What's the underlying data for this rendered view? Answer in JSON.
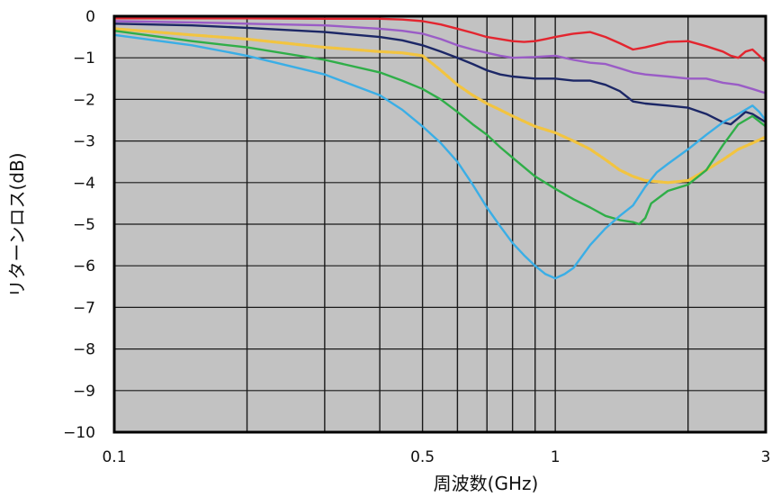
{
  "chart_data": {
    "type": "line",
    "title": "",
    "xlabel": "周波数(GHz)",
    "ylabel": "リターンロス(dB)",
    "x_scale": "log",
    "xlim": [
      0.1,
      3
    ],
    "ylim": [
      -10,
      0
    ],
    "grid": true,
    "background_color": "#c2c2c2",
    "grid_color": "#1a1a1a",
    "x_ticks": {
      "values": [
        0.1,
        0.5,
        1,
        3
      ],
      "labels": [
        "0.1",
        "0.5",
        "1",
        "3"
      ]
    },
    "x_gridlines": [
      0.2,
      0.3,
      0.4,
      0.5,
      0.6,
      0.7,
      0.8,
      0.9,
      1,
      2
    ],
    "y_ticks": {
      "values": [
        0,
        -1,
        -2,
        -3,
        -4,
        -5,
        -6,
        -7,
        -8,
        -9,
        -10
      ],
      "labels": [
        "0",
        "−1",
        "−2",
        "−3",
        "−4",
        "−5",
        "−6",
        "−7",
        "−8",
        "−9",
        "−10"
      ]
    },
    "series": [
      {
        "color": "#e3252f",
        "line_style": "solid",
        "points": [
          [
            0.1,
            -0.05
          ],
          [
            0.15,
            -0.05
          ],
          [
            0.2,
            -0.05
          ],
          [
            0.3,
            -0.06
          ],
          [
            0.4,
            -0.06
          ],
          [
            0.45,
            -0.08
          ],
          [
            0.5,
            -0.12
          ],
          [
            0.55,
            -0.2
          ],
          [
            0.6,
            -0.3
          ],
          [
            0.65,
            -0.4
          ],
          [
            0.7,
            -0.5
          ],
          [
            0.75,
            -0.55
          ],
          [
            0.8,
            -0.6
          ],
          [
            0.85,
            -0.62
          ],
          [
            0.9,
            -0.6
          ],
          [
            0.95,
            -0.55
          ],
          [
            1.0,
            -0.5
          ],
          [
            1.1,
            -0.42
          ],
          [
            1.2,
            -0.38
          ],
          [
            1.3,
            -0.5
          ],
          [
            1.4,
            -0.65
          ],
          [
            1.5,
            -0.8
          ],
          [
            1.6,
            -0.75
          ],
          [
            1.7,
            -0.68
          ],
          [
            1.8,
            -0.62
          ],
          [
            2.0,
            -0.6
          ],
          [
            2.2,
            -0.72
          ],
          [
            2.4,
            -0.85
          ],
          [
            2.5,
            -0.95
          ],
          [
            2.6,
            -1.0
          ],
          [
            2.7,
            -0.85
          ],
          [
            2.8,
            -0.8
          ],
          [
            2.9,
            -0.95
          ],
          [
            3.0,
            -1.1
          ]
        ]
      },
      {
        "color": "#9a5cc6",
        "line_style": "solid",
        "points": [
          [
            0.1,
            -0.12
          ],
          [
            0.15,
            -0.15
          ],
          [
            0.2,
            -0.18
          ],
          [
            0.3,
            -0.22
          ],
          [
            0.4,
            -0.3
          ],
          [
            0.45,
            -0.35
          ],
          [
            0.5,
            -0.42
          ],
          [
            0.55,
            -0.55
          ],
          [
            0.6,
            -0.7
          ],
          [
            0.65,
            -0.8
          ],
          [
            0.7,
            -0.88
          ],
          [
            0.75,
            -0.95
          ],
          [
            0.8,
            -1.0
          ],
          [
            0.9,
            -0.98
          ],
          [
            1.0,
            -0.95
          ],
          [
            1.1,
            -1.05
          ],
          [
            1.2,
            -1.12
          ],
          [
            1.3,
            -1.15
          ],
          [
            1.4,
            -1.25
          ],
          [
            1.5,
            -1.35
          ],
          [
            1.6,
            -1.4
          ],
          [
            1.8,
            -1.45
          ],
          [
            2.0,
            -1.5
          ],
          [
            2.2,
            -1.5
          ],
          [
            2.4,
            -1.6
          ],
          [
            2.6,
            -1.65
          ],
          [
            2.8,
            -1.75
          ],
          [
            3.0,
            -1.85
          ]
        ]
      },
      {
        "color": "#1c2766",
        "line_style": "solid",
        "points": [
          [
            0.1,
            -0.18
          ],
          [
            0.15,
            -0.22
          ],
          [
            0.2,
            -0.28
          ],
          [
            0.3,
            -0.38
          ],
          [
            0.4,
            -0.5
          ],
          [
            0.45,
            -0.58
          ],
          [
            0.5,
            -0.7
          ],
          [
            0.55,
            -0.85
          ],
          [
            0.6,
            -1.0
          ],
          [
            0.65,
            -1.15
          ],
          [
            0.7,
            -1.3
          ],
          [
            0.75,
            -1.4
          ],
          [
            0.8,
            -1.45
          ],
          [
            0.9,
            -1.5
          ],
          [
            1.0,
            -1.5
          ],
          [
            1.1,
            -1.55
          ],
          [
            1.2,
            -1.55
          ],
          [
            1.3,
            -1.65
          ],
          [
            1.4,
            -1.8
          ],
          [
            1.5,
            -2.05
          ],
          [
            1.6,
            -2.1
          ],
          [
            1.8,
            -2.15
          ],
          [
            2.0,
            -2.2
          ],
          [
            2.2,
            -2.35
          ],
          [
            2.4,
            -2.55
          ],
          [
            2.5,
            -2.6
          ],
          [
            2.6,
            -2.45
          ],
          [
            2.7,
            -2.3
          ],
          [
            2.8,
            -2.35
          ],
          [
            3.0,
            -2.55
          ]
        ]
      },
      {
        "color": "#f2c440",
        "line_style": "dotted",
        "points": [
          [
            0.1,
            -0.3
          ],
          [
            0.15,
            -0.45
          ],
          [
            0.2,
            -0.55
          ],
          [
            0.3,
            -0.75
          ],
          [
            0.4,
            -0.85
          ],
          [
            0.45,
            -0.88
          ],
          [
            0.5,
            -0.95
          ],
          [
            0.55,
            -1.3
          ],
          [
            0.6,
            -1.65
          ],
          [
            0.65,
            -1.9
          ],
          [
            0.7,
            -2.1
          ],
          [
            0.75,
            -2.25
          ],
          [
            0.8,
            -2.4
          ],
          [
            0.9,
            -2.65
          ],
          [
            1.0,
            -2.8
          ],
          [
            1.1,
            -3.0
          ],
          [
            1.2,
            -3.2
          ],
          [
            1.3,
            -3.45
          ],
          [
            1.4,
            -3.7
          ],
          [
            1.5,
            -3.85
          ],
          [
            1.6,
            -3.95
          ],
          [
            1.8,
            -4.0
          ],
          [
            2.0,
            -3.95
          ],
          [
            2.2,
            -3.7
          ],
          [
            2.4,
            -3.45
          ],
          [
            2.6,
            -3.2
          ],
          [
            2.8,
            -3.05
          ],
          [
            3.0,
            -2.9
          ]
        ]
      },
      {
        "color": "#2fae48",
        "line_style": "solid",
        "points": [
          [
            0.1,
            -0.35
          ],
          [
            0.15,
            -0.6
          ],
          [
            0.2,
            -0.75
          ],
          [
            0.3,
            -1.05
          ],
          [
            0.4,
            -1.35
          ],
          [
            0.45,
            -1.55
          ],
          [
            0.5,
            -1.75
          ],
          [
            0.55,
            -2.0
          ],
          [
            0.6,
            -2.3
          ],
          [
            0.65,
            -2.6
          ],
          [
            0.7,
            -2.85
          ],
          [
            0.75,
            -3.15
          ],
          [
            0.8,
            -3.4
          ],
          [
            0.9,
            -3.85
          ],
          [
            1.0,
            -4.15
          ],
          [
            1.1,
            -4.4
          ],
          [
            1.2,
            -4.6
          ],
          [
            1.3,
            -4.8
          ],
          [
            1.4,
            -4.9
          ],
          [
            1.5,
            -4.95
          ],
          [
            1.55,
            -5.0
          ],
          [
            1.6,
            -4.85
          ],
          [
            1.65,
            -4.5
          ],
          [
            1.8,
            -4.2
          ],
          [
            2.0,
            -4.05
          ],
          [
            2.2,
            -3.7
          ],
          [
            2.4,
            -3.1
          ],
          [
            2.6,
            -2.6
          ],
          [
            2.8,
            -2.4
          ],
          [
            3.0,
            -2.65
          ]
        ]
      },
      {
        "color": "#3aaee6",
        "line_style": "solid",
        "points": [
          [
            0.1,
            -0.45
          ],
          [
            0.15,
            -0.7
          ],
          [
            0.2,
            -0.95
          ],
          [
            0.3,
            -1.4
          ],
          [
            0.4,
            -1.9
          ],
          [
            0.45,
            -2.25
          ],
          [
            0.5,
            -2.65
          ],
          [
            0.55,
            -3.05
          ],
          [
            0.6,
            -3.5
          ],
          [
            0.65,
            -4.05
          ],
          [
            0.7,
            -4.6
          ],
          [
            0.75,
            -5.05
          ],
          [
            0.8,
            -5.45
          ],
          [
            0.85,
            -5.75
          ],
          [
            0.9,
            -6.0
          ],
          [
            0.95,
            -6.2
          ],
          [
            1.0,
            -6.3
          ],
          [
            1.05,
            -6.2
          ],
          [
            1.1,
            -6.05
          ],
          [
            1.2,
            -5.5
          ],
          [
            1.3,
            -5.1
          ],
          [
            1.4,
            -4.8
          ],
          [
            1.5,
            -4.55
          ],
          [
            1.6,
            -4.1
          ],
          [
            1.7,
            -3.75
          ],
          [
            1.8,
            -3.55
          ],
          [
            2.0,
            -3.2
          ],
          [
            2.2,
            -2.85
          ],
          [
            2.4,
            -2.55
          ],
          [
            2.6,
            -2.35
          ],
          [
            2.8,
            -2.15
          ],
          [
            2.9,
            -2.3
          ],
          [
            3.0,
            -2.5
          ]
        ]
      }
    ]
  }
}
